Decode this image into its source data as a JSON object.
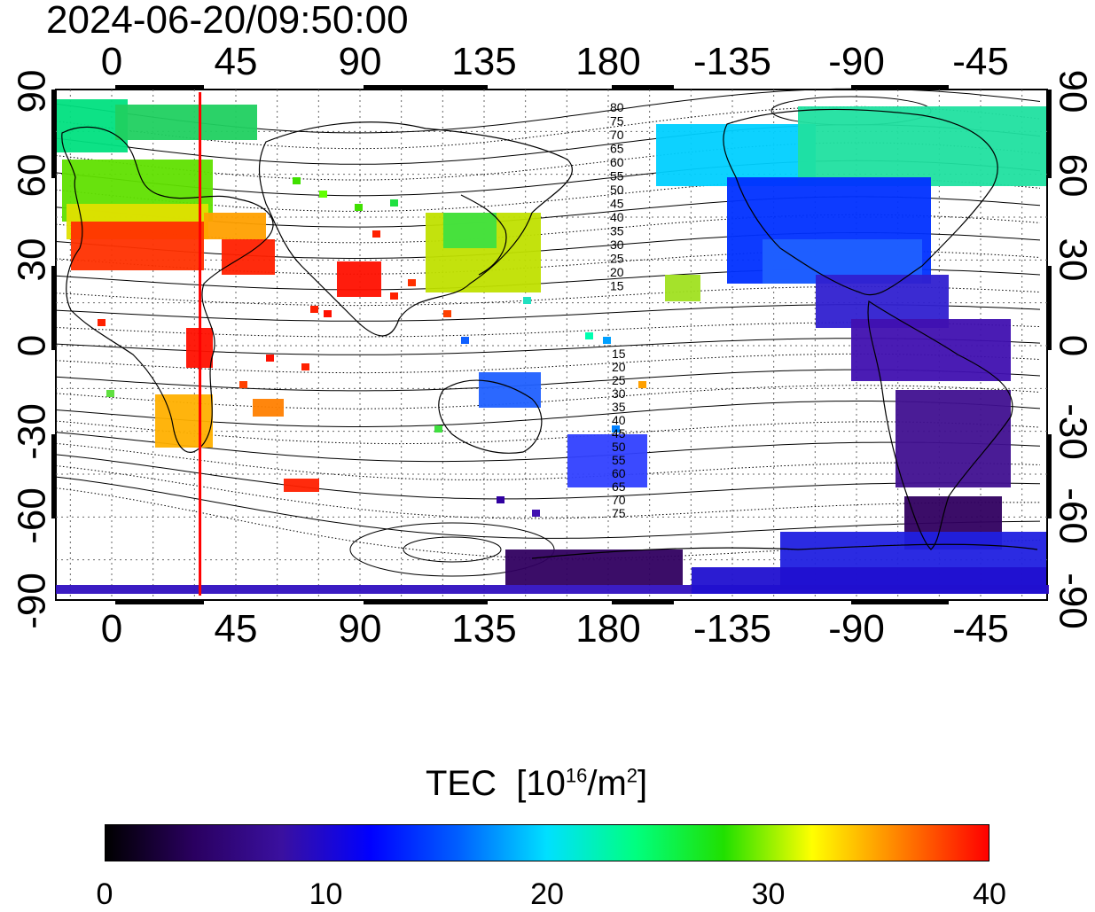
{
  "timestamp": "2024-06-20/09:50:00",
  "x_ticks_top": [
    "0",
    "45",
    "90",
    "135",
    "180",
    "-135",
    "-90",
    "-45"
  ],
  "x_ticks_bottom": [
    "0",
    "45",
    "90",
    "135",
    "180",
    "-135",
    "-90",
    "-45"
  ],
  "y_ticks_left": [
    "90",
    "60",
    "30",
    "0",
    "-30",
    "-60",
    "-90"
  ],
  "y_ticks_right": [
    "90",
    "60",
    "30",
    "0",
    "-30",
    "-60",
    "-90"
  ],
  "contour_labels_north": [
    "80",
    "75",
    "70",
    "65",
    "60",
    "55",
    "50",
    "45",
    "40",
    "35",
    "30",
    "25",
    "20",
    "15"
  ],
  "contour_labels_south": [
    "15",
    "20",
    "25",
    "30",
    "35",
    "40",
    "45",
    "50",
    "55",
    "60",
    "65",
    "70",
    "75"
  ],
  "marker_longitude": 32,
  "colorbar": {
    "title_main": "TEC",
    "title_unit_prefix": "[10",
    "title_unit_exp": "16",
    "title_unit_mid": "/m",
    "title_unit_exp2": "2",
    "title_unit_suffix": "]",
    "ticks": [
      "0",
      "10",
      "20",
      "30",
      "40"
    ],
    "min": 0,
    "max": 40
  },
  "colors": {
    "marker": "#ff0000",
    "cmap": [
      "#000000",
      "#2a0060",
      "#3a10a0",
      "#0000ff",
      "#0060ff",
      "#00e0ff",
      "#00ff80",
      "#20e000",
      "#ffff00",
      "#ff8000",
      "#ff0000"
    ]
  }
}
